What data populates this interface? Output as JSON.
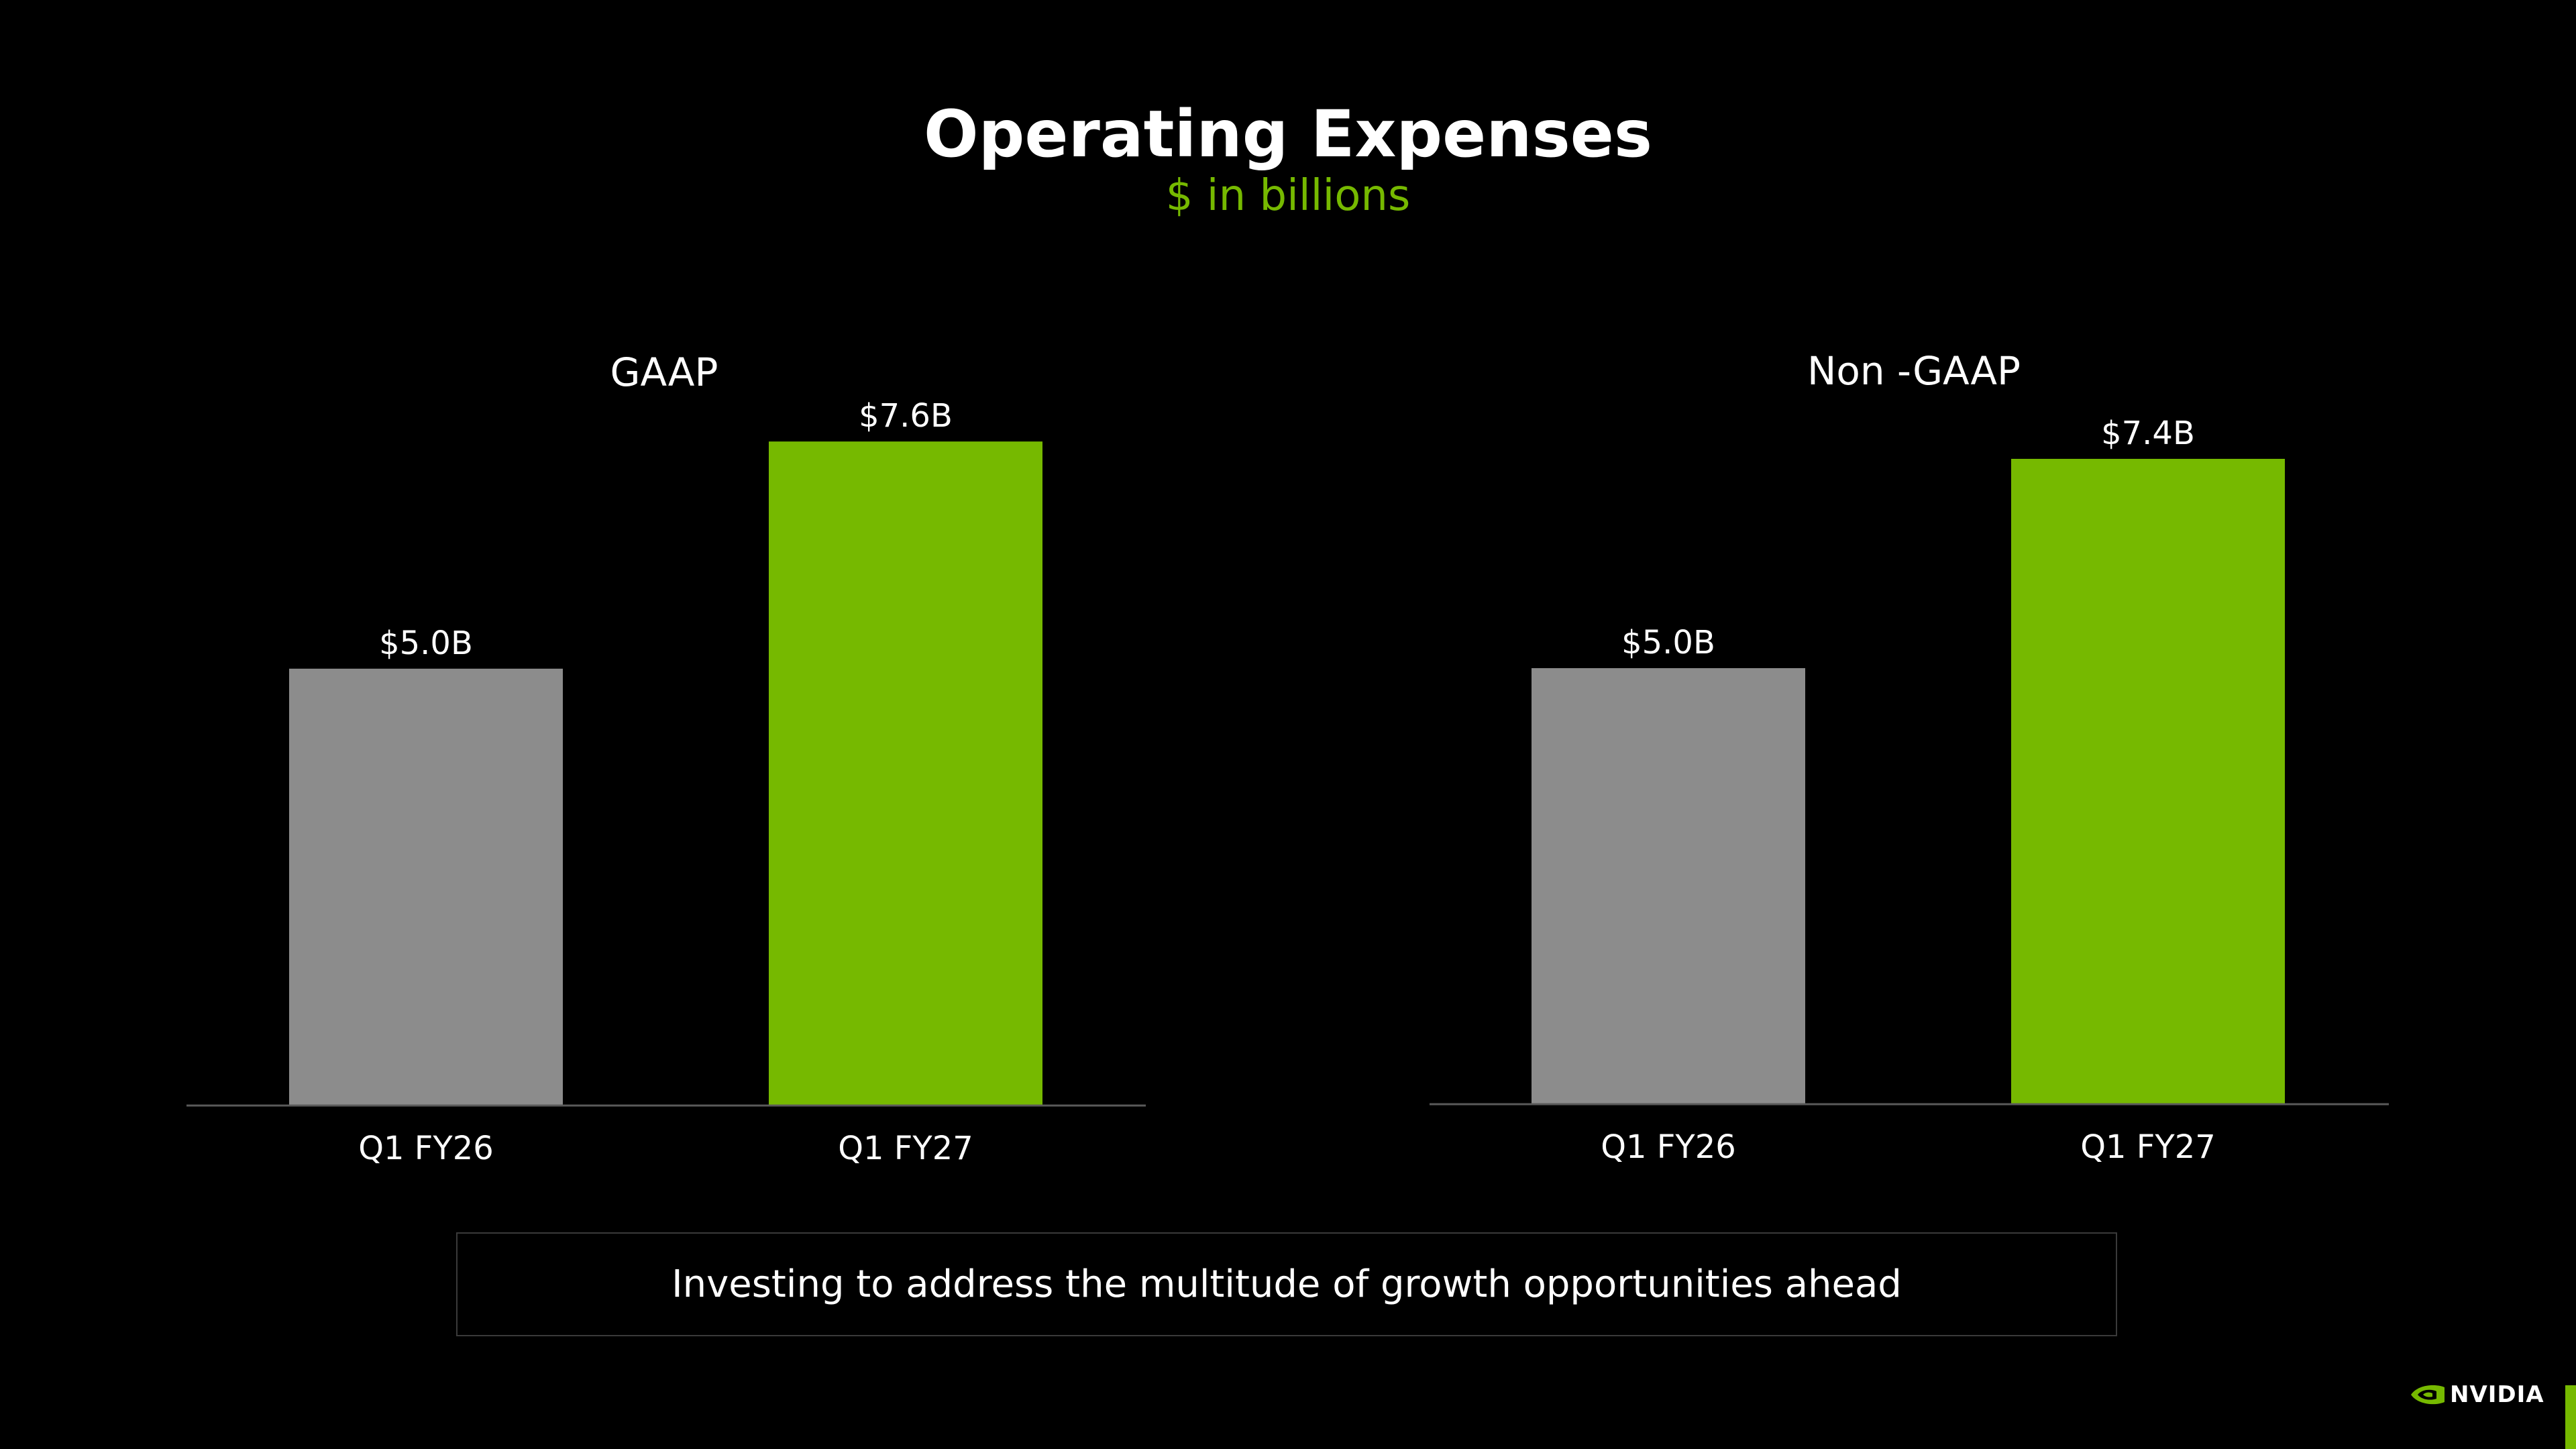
{
  "slide": {
    "title": "Operating Expenses",
    "subtitle": "$ in billions",
    "callout": "Investing to address the multitude of growth opportunities ahead",
    "logo_text": "NVIDIA"
  },
  "colors": {
    "background": "#000000",
    "accent": "#76b900",
    "prior_period_bar": "#8c8c8c",
    "axis_line": "#5a5a5a"
  },
  "chart_data": [
    {
      "type": "bar",
      "title": "GAAP",
      "categories": [
        "Q1 FY26",
        "Q1 FY27"
      ],
      "values": [
        5.0,
        7.6
      ],
      "data_labels": [
        "$5.0B",
        "$7.6B"
      ],
      "bar_colors": [
        "#8c8c8c",
        "#76b900"
      ],
      "ylim": [
        0,
        8.2
      ],
      "grid": false,
      "legend": "none"
    },
    {
      "type": "bar",
      "title": "Non -GAAP",
      "categories": [
        "Q1 FY26",
        "Q1 FY27"
      ],
      "values": [
        5.0,
        7.4
      ],
      "data_labels": [
        "$5.0B",
        "$7.4B"
      ],
      "bar_colors": [
        "#8c8c8c",
        "#76b900"
      ],
      "ylim": [
        0,
        8.2
      ],
      "grid": false,
      "legend": "none"
    }
  ]
}
